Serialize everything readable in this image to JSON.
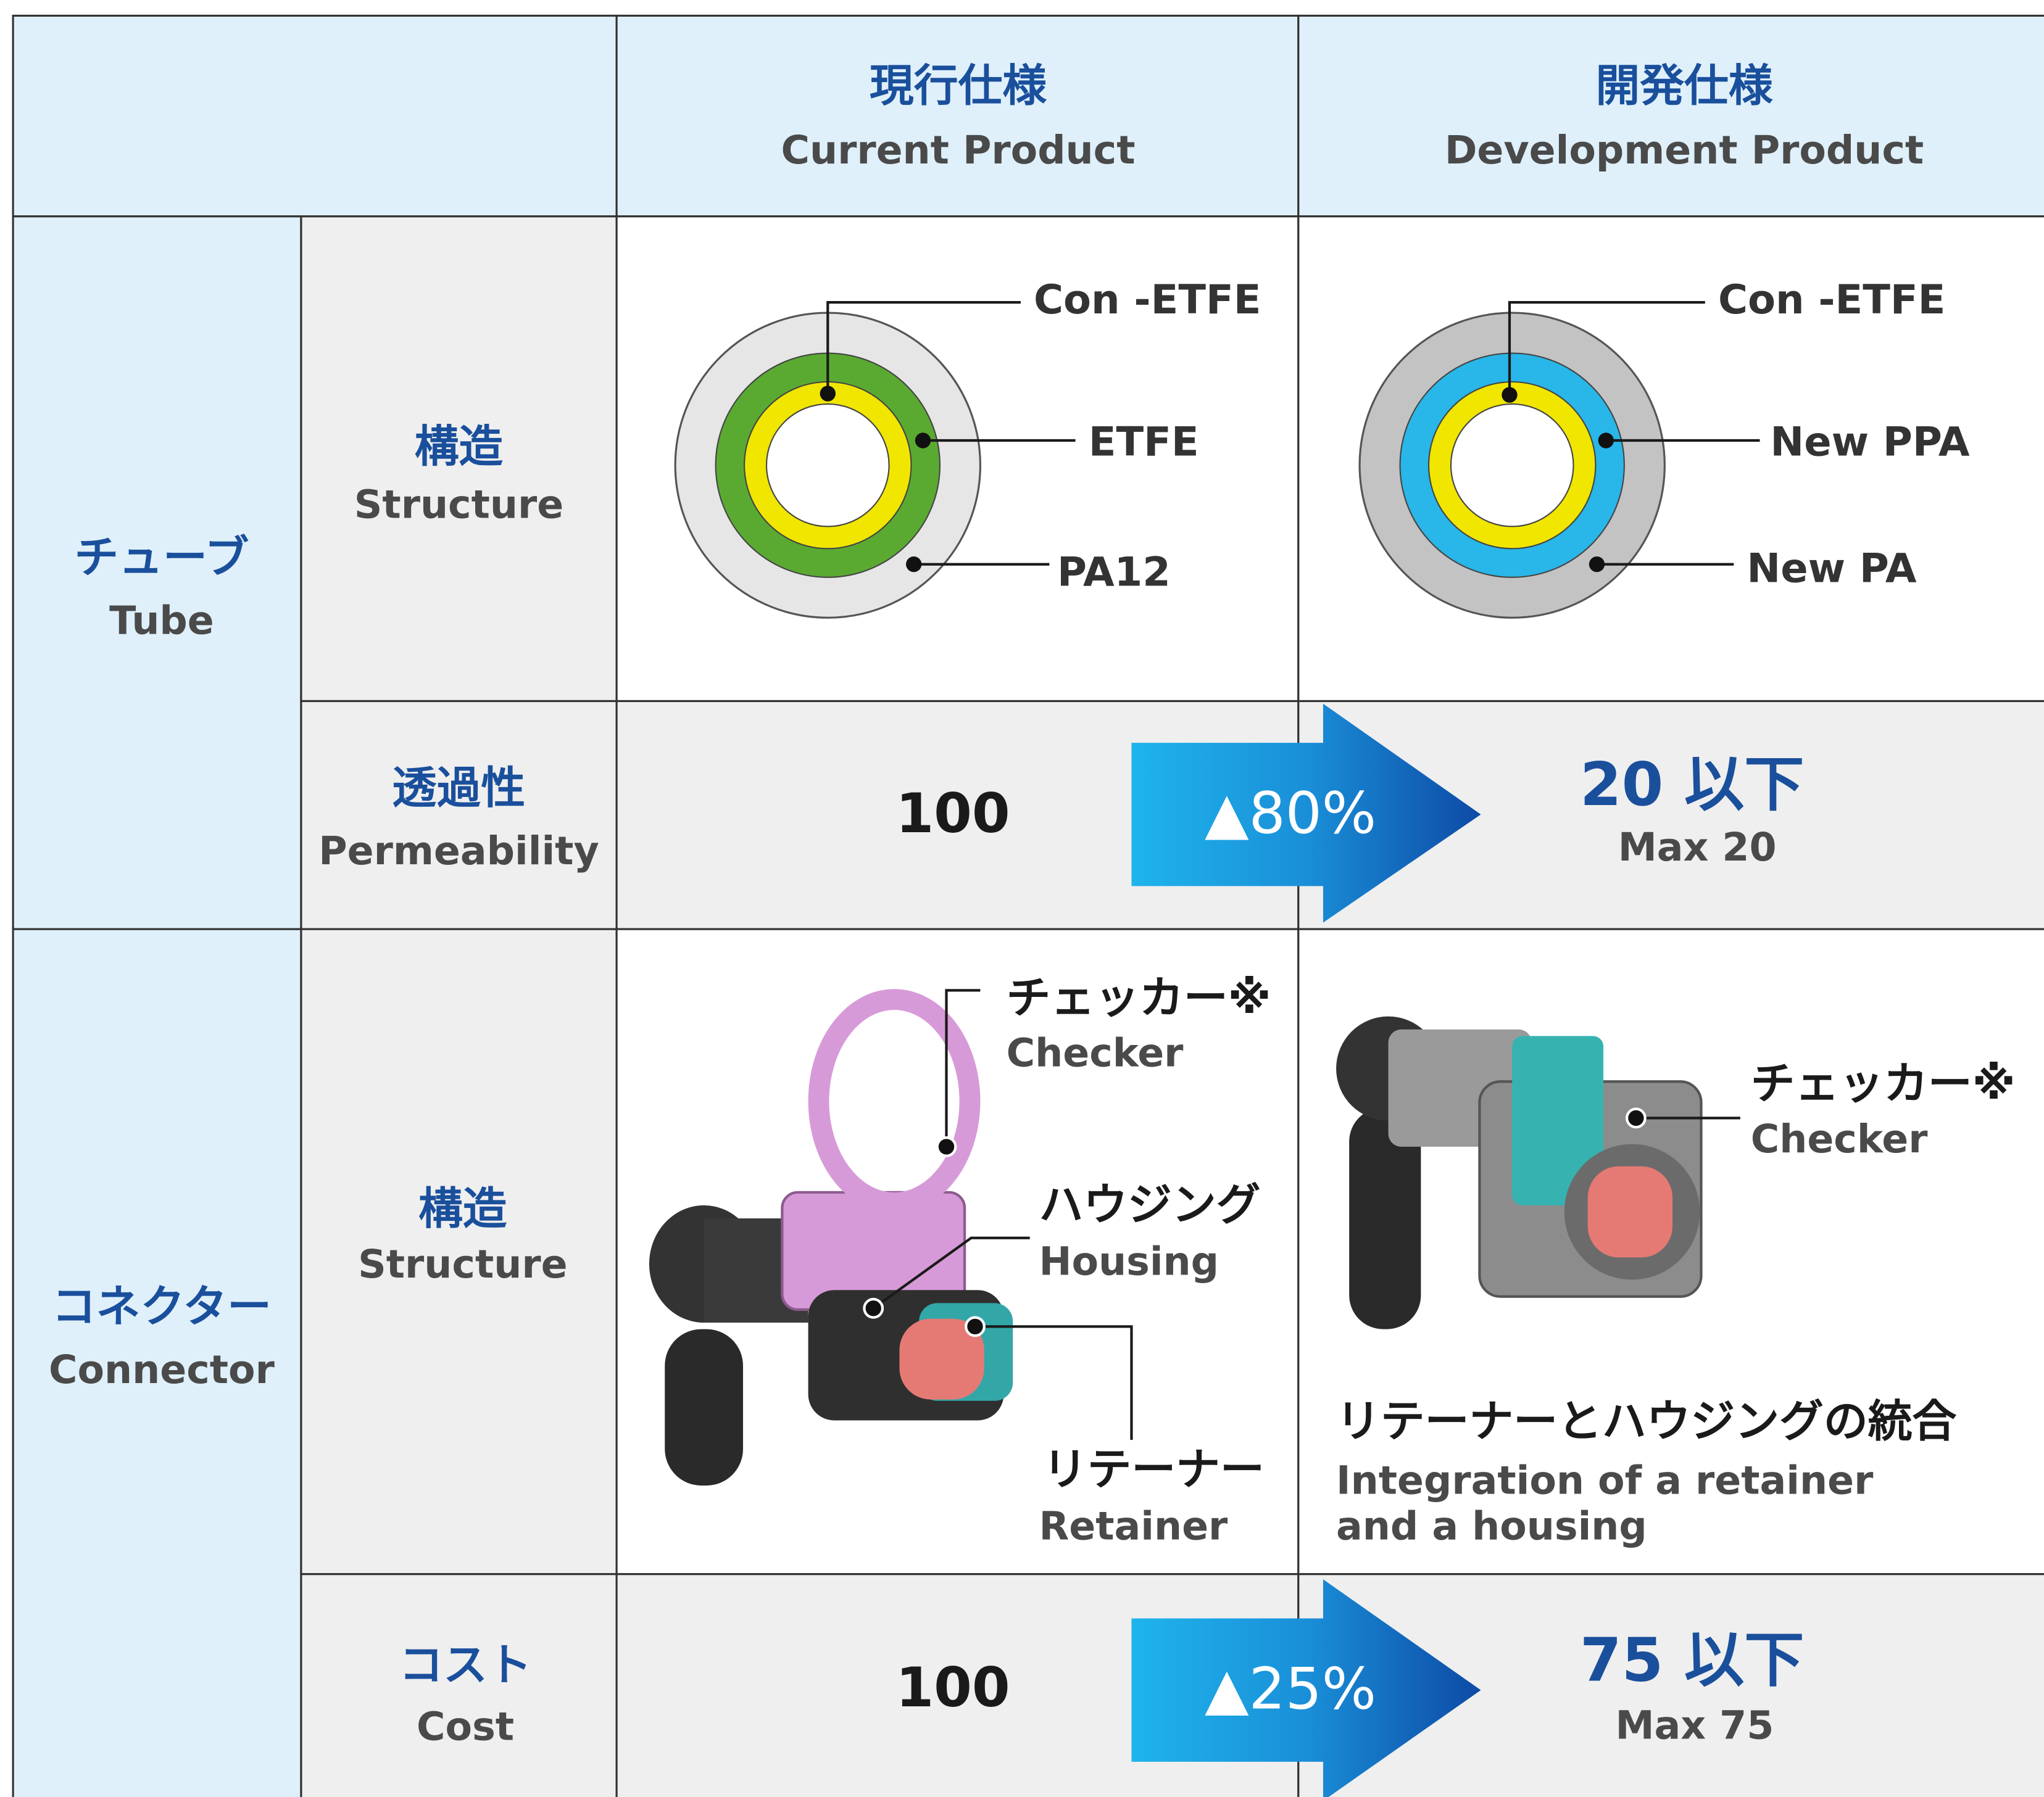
{
  "header": {
    "current": {
      "ja": "現行仕様",
      "en": "Current Product"
    },
    "development": {
      "ja": "開発仕様",
      "en": "Development Product"
    }
  },
  "sections": [
    {
      "ja": "チューブ",
      "en": "Tube",
      "rows": [
        {
          "ja": "構造",
          "en": "Structure",
          "current": {
            "layers": [
              "Con -ETFE",
              "ETFE",
              "PA12"
            ]
          },
          "development": {
            "layers": [
              "Con -ETFE",
              "New PPA",
              "New PA"
            ]
          }
        },
        {
          "ja": "透過性",
          "en": "Permeability",
          "current": "100",
          "change": "▲80%",
          "development": {
            "ja": "20 以下",
            "en": "Max 20"
          }
        }
      ]
    },
    {
      "ja": "コネクター",
      "en": "Connector",
      "rows": [
        {
          "ja": "構造",
          "en": "Structure",
          "current": {
            "parts": [
              {
                "ja": "チェッカー※",
                "en": "Checker"
              },
              {
                "ja": "ハウジング",
                "en": "Housing"
              },
              {
                "ja": "リテーナー",
                "en": "Retainer"
              }
            ]
          },
          "development": {
            "parts": [
              {
                "ja": "チェッカー※",
                "en": "Checker"
              }
            ],
            "note": {
              "ja": "リテーナーとハウジングの統合",
              "en": [
                "Integration of a retainer",
                "and a housing"
              ]
            }
          }
        },
        {
          "ja": "コスト",
          "en": "Cost",
          "current": "100",
          "change": "▲25%",
          "development": {
            "ja": "75 以下",
            "en": "Max 75"
          }
        }
      ]
    }
  ]
}
